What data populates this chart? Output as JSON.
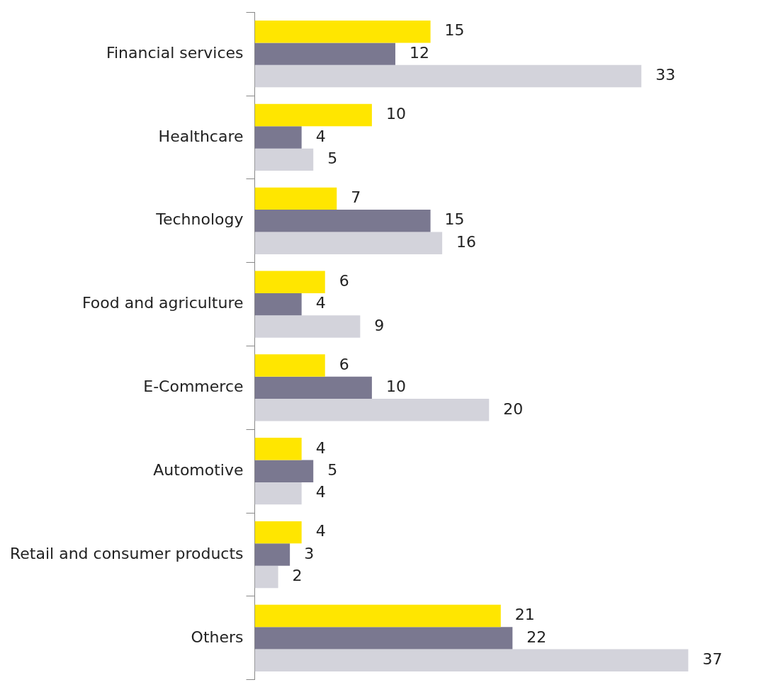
{
  "chart_data": {
    "type": "bar",
    "orientation": "horizontal",
    "data_labels": true,
    "legend": false,
    "categories": [
      "Financial services",
      "Healthcare",
      "Technology",
      "Food and agriculture",
      "E-Commerce",
      "Automotive",
      "Retail and consumer products",
      "Others"
    ],
    "series": [
      {
        "color": "#ffe600",
        "values": [
          15,
          10,
          7,
          6,
          6,
          4,
          4,
          21
        ]
      },
      {
        "color": "#7a7890",
        "values": [
          12,
          4,
          15,
          4,
          10,
          5,
          3,
          22
        ]
      },
      {
        "color": "#d3d3db",
        "values": [
          33,
          5,
          16,
          9,
          20,
          4,
          2,
          37
        ]
      }
    ]
  }
}
